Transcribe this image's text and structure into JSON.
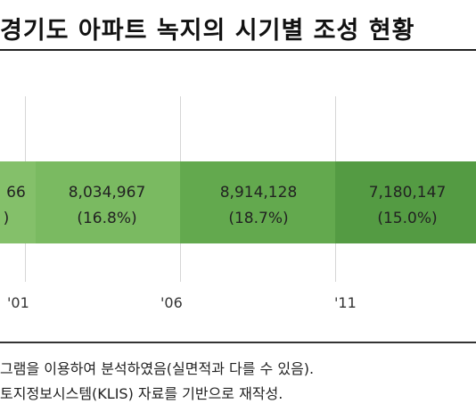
{
  "title": "경기도 아파트 녹지의 시기별 조성 현황",
  "colors": {
    "band_left": "#84c06a",
    "band_mid_left": "#7aba61",
    "band_mid": "#63a94e",
    "band_right": "#549b43",
    "gridline": "#d6d6d6"
  },
  "chart_data": {
    "type": "bar",
    "orientation": "horizontal-stacked",
    "x_ticks": [
      "'01",
      "'06",
      "'11"
    ],
    "segments": [
      {
        "value_label": "66",
        "pct_label": ")"
      },
      {
        "value_label": "8,034,967",
        "pct_label": "(16.8%)",
        "value": 8034967,
        "pct": 16.8
      },
      {
        "value_label": "8,914,128",
        "pct_label": "(18.7%)",
        "value": 8914128,
        "pct": 18.7
      },
      {
        "value_label": "7,180,147",
        "pct_label": "(15.0%)",
        "value": 7180147,
        "pct": 15.0
      }
    ]
  },
  "notes": [
    "그램을 이용하여 분석하였음(실면적과 다를 수 있음).",
    "토지정보시스템(KLIS) 자료를 기반으로 재작성."
  ]
}
